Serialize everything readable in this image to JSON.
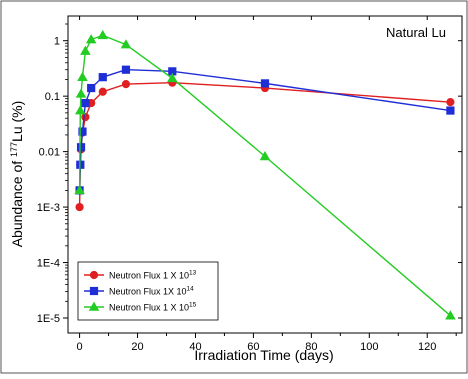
{
  "chart_data": {
    "type": "line",
    "annotation": "Natural Lu",
    "xlabel": "Irradiation Time (days)",
    "ylabel_prefix": "Abundance of ",
    "ylabel_superscript": "177",
    "ylabel_suffix": "Lu (%)",
    "xlim": [
      -4,
      132
    ],
    "ylim": [
      1e-05,
      2
    ],
    "yscale": "log",
    "grid": false,
    "legend_position": "bottom-left",
    "x_ticks": [
      {
        "value": 0,
        "label": "0"
      },
      {
        "value": 20,
        "label": "20"
      },
      {
        "value": 40,
        "label": "40"
      },
      {
        "value": 60,
        "label": "60"
      },
      {
        "value": 80,
        "label": "80"
      },
      {
        "value": 100,
        "label": "100"
      },
      {
        "value": 120,
        "label": "120"
      }
    ],
    "y_ticks": [
      {
        "value": 1,
        "label": "1"
      },
      {
        "value": 0.1,
        "label": "0.1"
      },
      {
        "value": 0.01,
        "label": "0.01"
      },
      {
        "value": 0.001,
        "label": "1E-3"
      },
      {
        "value": 0.0001,
        "label": "1E-4"
      },
      {
        "value": 1e-05,
        "label": "1E-5"
      }
    ],
    "series": [
      {
        "legend_text": "Neutron Flux 1 X 10",
        "legend_exp": "13",
        "color": "#e02020",
        "marker": "circle",
        "x": [
          0,
          0.25,
          0.5,
          1,
          2,
          4,
          8,
          16,
          32,
          64,
          128
        ],
        "y": [
          0.001,
          0.0058,
          0.011,
          0.022,
          0.042,
          0.075,
          0.12,
          0.165,
          0.175,
          0.14,
          0.078
        ]
      },
      {
        "legend_text": "Neutron Flux 1X 10",
        "legend_exp": "14",
        "color": "#1f2fd6",
        "marker": "square",
        "x": [
          0,
          0.25,
          0.5,
          1,
          2,
          4,
          8,
          16,
          32,
          64,
          128
        ],
        "y": [
          0.002,
          0.0058,
          0.012,
          0.023,
          0.075,
          0.14,
          0.22,
          0.3,
          0.28,
          0.17,
          0.055
        ]
      },
      {
        "legend_text": "Neutron Flux 1 X 10",
        "legend_exp": "15",
        "color": "#22cc22",
        "marker": "triangle",
        "x": [
          0,
          0.25,
          0.5,
          1,
          2,
          4,
          8,
          16,
          32,
          64,
          128
        ],
        "y": [
          0.002,
          0.055,
          0.11,
          0.22,
          0.65,
          1.05,
          1.25,
          0.85,
          0.21,
          0.0082,
          1.1e-05
        ]
      }
    ]
  }
}
